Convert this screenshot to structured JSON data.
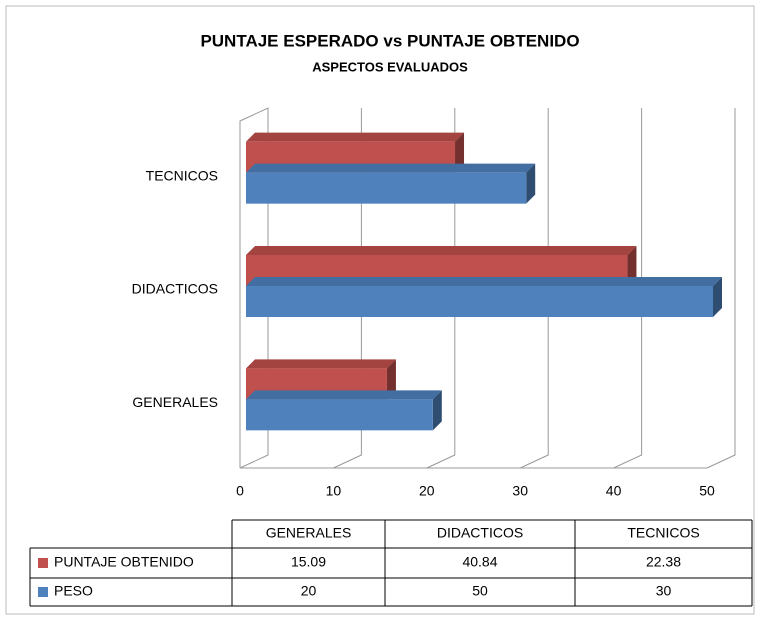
{
  "chart_data": {
    "type": "bar3d",
    "orientation": "horizontal",
    "title": "PUNTAJE ESPERADO  vs PUNTAJE OBTENIDO",
    "subtitle": "ASPECTOS EVALUADOS",
    "categories": [
      "GENERALES",
      "DIDACTICOS",
      "TECNICOS"
    ],
    "series": [
      {
        "name": "PUNTAJE OBTENIDO",
        "color": "#c0504d",
        "values": [
          15.09,
          40.84,
          22.38
        ]
      },
      {
        "name": "PESO",
        "color": "#4f81bd",
        "values": [
          20,
          50,
          30
        ]
      }
    ],
    "xlim": [
      0,
      50
    ],
    "xticks": [
      0,
      10,
      20,
      30,
      40,
      50
    ],
    "grid": true,
    "data_table": true
  }
}
